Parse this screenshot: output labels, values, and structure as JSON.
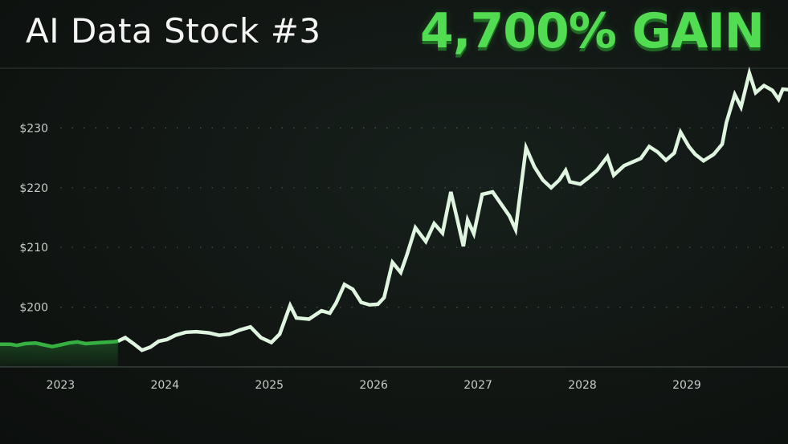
{
  "header": {
    "title": "AI Data Stock #3",
    "highlight": "4,700% GAIN"
  },
  "colors": {
    "line": "#dff5df",
    "historical_line": "#35b041",
    "accent": "#52dc52"
  },
  "chart_data": {
    "type": "line",
    "title": "AI Data Stock #3",
    "xlabel": "",
    "ylabel": "",
    "grid": true,
    "ylim": [
      190,
      240
    ],
    "xlim": [
      2022.42,
      2029.97
    ],
    "y_ticks": [
      {
        "value": 200,
        "label": "$200"
      },
      {
        "value": 210,
        "label": "$210"
      },
      {
        "value": 220,
        "label": "$220"
      },
      {
        "value": 230,
        "label": "$230"
      }
    ],
    "x_ticks": [
      {
        "value": 2023,
        "label": "2023"
      },
      {
        "value": 2024,
        "label": "2024"
      },
      {
        "value": 2025,
        "label": "2025"
      },
      {
        "value": 2026,
        "label": "2026"
      },
      {
        "value": 2027,
        "label": "2027"
      },
      {
        "value": 2028,
        "label": "2028"
      },
      {
        "value": 2029,
        "label": "2029"
      }
    ],
    "series": [
      {
        "values": [
          [
            2022.42,
            193.8
          ],
          [
            2022.52,
            193.8
          ],
          [
            2022.58,
            193.6
          ],
          [
            2022.66,
            193.9
          ],
          [
            2022.76,
            194.0
          ],
          [
            2022.84,
            193.7
          ],
          [
            2022.92,
            193.4
          ],
          [
            2023.0,
            193.7
          ],
          [
            2023.08,
            194.0
          ],
          [
            2023.16,
            194.2
          ],
          [
            2023.24,
            193.9
          ],
          [
            2023.32,
            194.0
          ],
          [
            2023.4,
            194.1
          ],
          [
            2023.5,
            194.2
          ],
          [
            2023.55,
            194.3
          ]
        ]
      },
      {
        "values": [
          [
            2023.55,
            194.3
          ],
          [
            2023.62,
            194.9
          ],
          [
            2023.7,
            193.9
          ],
          [
            2023.78,
            192.8
          ],
          [
            2023.86,
            193.3
          ],
          [
            2023.94,
            194.3
          ],
          [
            2024.02,
            194.6
          ],
          [
            2024.1,
            195.3
          ],
          [
            2024.2,
            195.8
          ],
          [
            2024.3,
            195.9
          ],
          [
            2024.42,
            195.7
          ],
          [
            2024.52,
            195.3
          ],
          [
            2024.62,
            195.5
          ],
          [
            2024.72,
            196.2
          ],
          [
            2024.82,
            196.7
          ],
          [
            2024.92,
            194.9
          ],
          [
            2025.02,
            194.1
          ],
          [
            2025.1,
            195.5
          ],
          [
            2025.2,
            200.3
          ],
          [
            2025.26,
            198.2
          ],
          [
            2025.38,
            198.0
          ],
          [
            2025.5,
            199.4
          ],
          [
            2025.58,
            199.0
          ],
          [
            2025.64,
            200.7
          ],
          [
            2025.72,
            203.8
          ],
          [
            2025.8,
            203.0
          ],
          [
            2025.88,
            200.8
          ],
          [
            2025.96,
            200.4
          ],
          [
            2026.04,
            200.5
          ],
          [
            2026.1,
            201.6
          ],
          [
            2026.18,
            207.5
          ],
          [
            2026.26,
            205.8
          ],
          [
            2026.32,
            208.8
          ],
          [
            2026.4,
            213.3
          ],
          [
            2026.5,
            211.0
          ],
          [
            2026.58,
            214.0
          ],
          [
            2026.66,
            212.4
          ],
          [
            2026.74,
            219.3
          ],
          [
            2026.8,
            214.8
          ],
          [
            2026.86,
            210.2
          ],
          [
            2026.9,
            214.6
          ],
          [
            2026.96,
            212.3
          ],
          [
            2027.04,
            218.9
          ],
          [
            2027.14,
            219.3
          ],
          [
            2027.2,
            217.8
          ],
          [
            2027.3,
            215.3
          ],
          [
            2027.36,
            213.0
          ],
          [
            2027.46,
            226.7
          ],
          [
            2027.54,
            223.5
          ],
          [
            2027.62,
            221.3
          ],
          [
            2027.7,
            220.0
          ],
          [
            2027.78,
            221.3
          ],
          [
            2027.84,
            222.9
          ],
          [
            2027.88,
            221.0
          ],
          [
            2027.98,
            220.6
          ],
          [
            2028.06,
            221.7
          ],
          [
            2028.14,
            222.9
          ],
          [
            2028.24,
            225.2
          ],
          [
            2028.3,
            222.1
          ],
          [
            2028.4,
            223.7
          ],
          [
            2028.48,
            224.3
          ],
          [
            2028.56,
            224.9
          ],
          [
            2028.64,
            226.9
          ],
          [
            2028.72,
            226.0
          ],
          [
            2028.8,
            224.6
          ],
          [
            2028.88,
            225.8
          ],
          [
            2028.94,
            229.3
          ],
          [
            2029.02,
            226.9
          ],
          [
            2029.08,
            225.6
          ],
          [
            2029.16,
            224.5
          ],
          [
            2029.26,
            225.6
          ],
          [
            2029.34,
            227.3
          ],
          [
            2029.38,
            230.9
          ],
          [
            2029.46,
            235.6
          ],
          [
            2029.52,
            233.5
          ],
          [
            2029.6,
            239.2
          ],
          [
            2029.66,
            235.9
          ],
          [
            2029.74,
            237.1
          ],
          [
            2029.82,
            236.3
          ],
          [
            2029.88,
            234.8
          ],
          [
            2029.92,
            236.5
          ],
          [
            2029.98,
            236.4
          ]
        ]
      }
    ]
  }
}
